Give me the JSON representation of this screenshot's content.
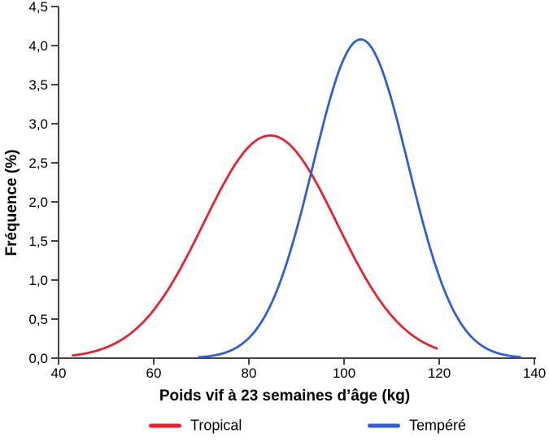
{
  "chart_data": {
    "type": "line",
    "title": "",
    "xlabel": "Poids vif à 23 semaines d’âge (kg)",
    "ylabel": "Fréquence (%)",
    "xlim": [
      40,
      140
    ],
    "ylim": [
      0,
      4.5
    ],
    "x_ticks": [
      "40",
      "60",
      "80",
      "100",
      "120",
      "140"
    ],
    "y_ticks": [
      "0,0",
      "0,5",
      "1,0",
      "1,5",
      "2,0",
      "2,5",
      "3,0",
      "3,5",
      "4,0",
      "4,5"
    ],
    "grid": false,
    "legend_position": "bottom",
    "axis_color": "#444444",
    "series": [
      {
        "name": "Tropical",
        "color": "#ee1e2d",
        "distribution": {
          "shape": "gaussian",
          "mean": 84.5,
          "sd": 14,
          "peak": 2.85,
          "x_min": 43,
          "x_max": 119.5
        },
        "points": {
          "x": [
            43,
            50,
            55,
            60,
            65,
            70,
            75,
            80,
            84.5,
            90,
            95,
            100,
            105,
            110,
            115,
            119.5
          ],
          "y": [
            0.04,
            0.14,
            0.31,
            0.62,
            1.08,
            1.67,
            2.26,
            2.71,
            2.85,
            2.64,
            2.15,
            1.54,
            0.98,
            0.54,
            0.27,
            0.12
          ]
        }
      },
      {
        "name": "Tempéré",
        "color": "#2d5ce0",
        "distribution": {
          "shape": "gaussian",
          "mean": 103.5,
          "sd": 10,
          "peak": 4.08,
          "x_min": 69.5,
          "x_max": 137
        },
        "points": {
          "x": [
            70,
            75,
            80,
            85,
            90,
            95,
            100,
            103.5,
            105,
            110,
            115,
            120,
            125,
            130,
            135,
            137
          ],
          "y": [
            0.02,
            0.07,
            0.26,
            0.74,
            1.64,
            2.84,
            3.84,
            4.08,
            4.03,
            3.3,
            2.11,
            1.05,
            0.4,
            0.12,
            0.03,
            0.02
          ]
        }
      }
    ]
  }
}
